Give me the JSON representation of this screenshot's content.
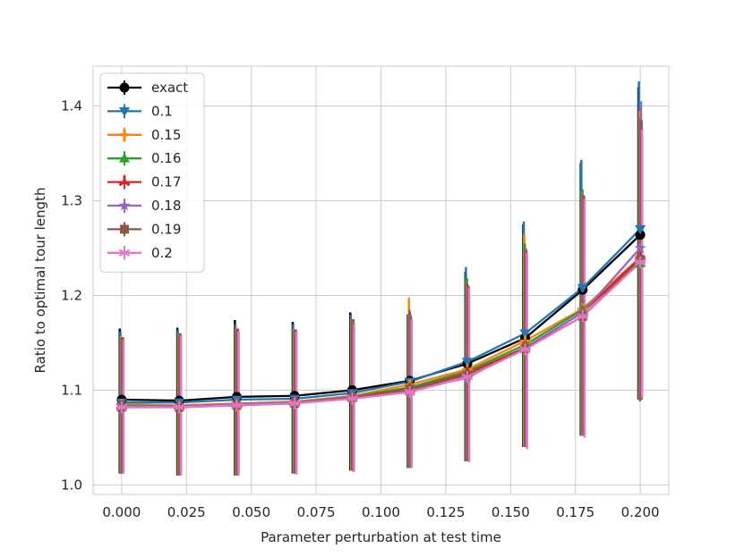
{
  "chart_data": {
    "type": "line",
    "xlabel": "Parameter perturbation at test time",
    "ylabel": "Ratio to optimal tour length",
    "x": [
      0.0,
      0.0222,
      0.0444,
      0.0667,
      0.0889,
      0.1111,
      0.1333,
      0.1556,
      0.1778,
      0.2
    ],
    "xlim": [
      -0.011,
      0.211
    ],
    "ylim": [
      0.99,
      1.442
    ],
    "xticks": [
      0.0,
      0.025,
      0.05,
      0.075,
      0.1,
      0.125,
      0.15,
      0.175,
      0.2
    ],
    "xtick_labels": [
      "0.000",
      "0.025",
      "0.050",
      "0.075",
      "0.100",
      "0.125",
      "0.150",
      "0.175",
      "0.200"
    ],
    "yticks": [
      1.0,
      1.1,
      1.2,
      1.3,
      1.4
    ],
    "ytick_labels": [
      "1.0",
      "1.1",
      "1.2",
      "1.3",
      "1.4"
    ],
    "grid": true,
    "legend_position": "top-left",
    "series": [
      {
        "name": "exact",
        "color": "#000000",
        "marker": "circle",
        "values": [
          1.09,
          1.089,
          1.093,
          1.094,
          1.1,
          1.11,
          1.128,
          1.155,
          1.206,
          1.264
        ],
        "err_low": [
          1.012,
          1.01,
          1.01,
          1.012,
          1.015,
          1.018,
          1.025,
          1.04,
          1.052,
          1.09
        ],
        "err_high": [
          1.165,
          1.166,
          1.174,
          1.172,
          1.182,
          1.18,
          1.225,
          1.275,
          1.34,
          1.42
        ]
      },
      {
        "name": "0.1",
        "color": "#1f77b4",
        "marker": "triangle-down",
        "values": [
          1.087,
          1.087,
          1.09,
          1.091,
          1.097,
          1.109,
          1.13,
          1.16,
          1.208,
          1.27
        ],
        "err_low": [
          1.012,
          1.01,
          1.01,
          1.012,
          1.015,
          1.018,
          1.025,
          1.04,
          1.052,
          1.09
        ],
        "err_high": [
          1.162,
          1.164,
          1.17,
          1.17,
          1.18,
          1.18,
          1.23,
          1.278,
          1.343,
          1.426
        ]
      },
      {
        "name": "0.15",
        "color": "#ff7f0e",
        "marker": "plus",
        "values": [
          1.085,
          1.084,
          1.086,
          1.088,
          1.094,
          1.106,
          1.122,
          1.152,
          1.186,
          1.24
        ],
        "err_low": [
          1.012,
          1.01,
          1.01,
          1.012,
          1.015,
          1.018,
          1.025,
          1.04,
          1.052,
          1.09
        ],
        "err_high": [
          1.157,
          1.16,
          1.166,
          1.165,
          1.176,
          1.198,
          1.215,
          1.265,
          1.31,
          1.395
        ]
      },
      {
        "name": "0.16",
        "color": "#2ca02c",
        "marker": "triangle-up",
        "values": [
          1.084,
          1.083,
          1.085,
          1.087,
          1.093,
          1.103,
          1.12,
          1.148,
          1.185,
          1.234
        ],
        "err_low": [
          1.012,
          1.01,
          1.01,
          1.012,
          1.015,
          1.018,
          1.025,
          1.04,
          1.052,
          1.088
        ],
        "err_high": [
          1.156,
          1.16,
          1.165,
          1.164,
          1.175,
          1.185,
          1.218,
          1.255,
          1.312,
          1.385
        ]
      },
      {
        "name": "0.17",
        "color": "#d62728",
        "marker": "tri",
        "values": [
          1.083,
          1.083,
          1.085,
          1.087,
          1.093,
          1.101,
          1.118,
          1.145,
          1.182,
          1.24
        ],
        "err_low": [
          1.012,
          1.01,
          1.01,
          1.012,
          1.015,
          1.018,
          1.025,
          1.04,
          1.052,
          1.09
        ],
        "err_high": [
          1.156,
          1.16,
          1.165,
          1.164,
          1.175,
          1.182,
          1.212,
          1.25,
          1.306,
          1.388
        ]
      },
      {
        "name": "0.18",
        "color": "#9467bd",
        "marker": "star",
        "values": [
          1.083,
          1.083,
          1.085,
          1.087,
          1.093,
          1.1,
          1.113,
          1.145,
          1.182,
          1.25
        ],
        "err_low": [
          1.012,
          1.01,
          1.01,
          1.012,
          1.015,
          1.018,
          1.025,
          1.04,
          1.052,
          1.09
        ],
        "err_high": [
          1.156,
          1.16,
          1.165,
          1.164,
          1.175,
          1.18,
          1.21,
          1.25,
          1.306,
          1.405
        ]
      },
      {
        "name": "0.19",
        "color": "#8c564b",
        "marker": "square",
        "values": [
          1.082,
          1.082,
          1.084,
          1.086,
          1.092,
          1.101,
          1.116,
          1.144,
          1.178,
          1.238
        ],
        "err_low": [
          1.012,
          1.01,
          1.01,
          1.012,
          1.014,
          1.018,
          1.025,
          1.04,
          1.052,
          1.09
        ],
        "err_high": [
          1.156,
          1.16,
          1.165,
          1.164,
          1.175,
          1.178,
          1.21,
          1.248,
          1.305,
          1.385
        ]
      },
      {
        "name": "0.2",
        "color": "#e377c2",
        "marker": "asterisk",
        "values": [
          1.082,
          1.082,
          1.084,
          1.086,
          1.091,
          1.098,
          1.114,
          1.143,
          1.178,
          1.235
        ],
        "err_low": [
          1.012,
          1.01,
          1.01,
          1.011,
          1.014,
          1.018,
          1.024,
          1.038,
          1.05,
          1.092
        ],
        "err_high": [
          1.153,
          1.158,
          1.162,
          1.162,
          1.17,
          1.175,
          1.208,
          1.245,
          1.302,
          1.375
        ]
      }
    ]
  }
}
